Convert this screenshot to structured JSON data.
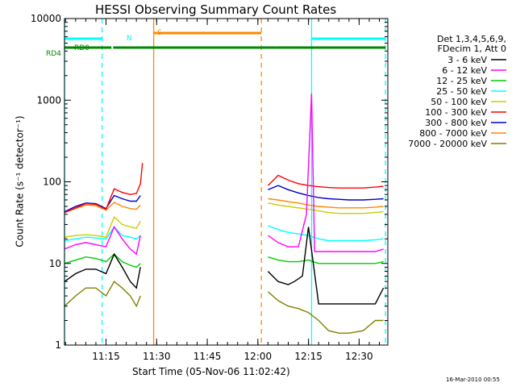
{
  "chart_data": {
    "type": "line",
    "title": "HESSI Observing Summary Count Rates",
    "xlabel": "Start Time (05-Nov-06 11:02:42)",
    "ylabel": "Count Rate (s⁻¹ detector⁻¹)",
    "yscale": "log",
    "ylim": [
      1,
      10000
    ],
    "xlim": [
      11.0449,
      12.6417
    ],
    "x_ticks": [
      11.25,
      11.5,
      11.75,
      12.0,
      12.25,
      12.5
    ],
    "x_tick_labels": [
      "11:15",
      "11:30",
      "11:45",
      "12:00",
      "12:15",
      "12:30"
    ],
    "y_ticks": [
      1,
      10,
      100,
      1000,
      10000
    ],
    "y_tick_labels": [
      "1",
      "10",
      "100",
      "1000",
      "10000"
    ],
    "legend_header": [
      "Det 1,3,4,5,6,9,",
      "FDecim 1, Att 0"
    ],
    "legend_placement": "right",
    "footer": "16-Mar-2010 00:55",
    "series": [
      {
        "name": "3 - 6 keV",
        "color": "#000000",
        "x": [
          11.045,
          11.1,
          11.15,
          11.2,
          11.25,
          11.29,
          11.33,
          11.37,
          11.4,
          11.42,
          12.05,
          12.1,
          12.15,
          12.18,
          12.22,
          12.25,
          12.3,
          12.35,
          12.4,
          12.45,
          12.52,
          12.58,
          12.62
        ],
        "y": [
          6,
          7.5,
          8.5,
          8.5,
          7.5,
          13,
          9,
          6,
          5,
          9,
          8,
          6,
          5.5,
          6,
          7,
          28,
          3.2,
          3.2,
          3.2,
          3.2,
          3.2,
          3.2,
          5
        ]
      },
      {
        "name": "6 - 12 keV",
        "color": "#ff00ff",
        "x": [
          11.045,
          11.1,
          11.15,
          11.2,
          11.25,
          11.29,
          11.33,
          11.37,
          11.4,
          11.42,
          12.05,
          12.1,
          12.15,
          12.2,
          12.24,
          12.265,
          12.28,
          12.35,
          12.4,
          12.45,
          12.52,
          12.58,
          12.62
        ],
        "y": [
          15,
          17,
          18,
          17,
          16,
          28,
          20,
          15,
          13,
          22,
          22,
          18,
          16,
          16,
          40,
          1200,
          14,
          14,
          14,
          14,
          14,
          14,
          15
        ]
      },
      {
        "name": "12 - 25 keV",
        "color": "#00cc00",
        "x": [
          11.045,
          11.1,
          11.15,
          11.2,
          11.25,
          11.29,
          11.33,
          11.37,
          11.4,
          11.42,
          12.05,
          12.1,
          12.15,
          12.2,
          12.25,
          12.3,
          12.35,
          12.4,
          12.45,
          12.52,
          12.58,
          12.62
        ],
        "y": [
          10,
          11,
          12,
          11.5,
          10.5,
          13,
          10.5,
          9.5,
          9,
          10,
          12,
          11,
          10.5,
          10.5,
          11,
          10,
          10,
          10,
          10,
          10,
          10,
          10.5
        ]
      },
      {
        "name": "25 - 50 keV",
        "color": "#00ffff",
        "x": [
          11.045,
          11.1,
          11.15,
          11.2,
          11.25,
          11.29,
          11.33,
          11.37,
          11.4,
          11.42,
          12.05,
          12.1,
          12.15,
          12.2,
          12.25,
          12.3,
          12.35,
          12.4,
          12.45,
          12.52,
          12.58,
          12.62
        ],
        "y": [
          19,
          20,
          21,
          20.5,
          20,
          28,
          22,
          21,
          20,
          22,
          29,
          26,
          24,
          23,
          22,
          20,
          19,
          19,
          19,
          19,
          19.5,
          20
        ]
      },
      {
        "name": "50 - 100 keV",
        "color": "#cccc00",
        "x": [
          11.045,
          11.1,
          11.15,
          11.2,
          11.25,
          11.29,
          11.33,
          11.37,
          11.4,
          11.42,
          12.05,
          12.1,
          12.15,
          12.2,
          12.25,
          12.3,
          12.35,
          12.4,
          12.45,
          12.52,
          12.58,
          12.62
        ],
        "y": [
          21,
          22,
          22.5,
          22,
          21,
          37,
          30,
          28,
          27,
          33,
          55,
          52,
          50,
          48,
          46,
          44,
          42,
          41,
          41,
          41,
          42,
          43
        ]
      },
      {
        "name": "100 - 300 keV",
        "color": "#ff0000",
        "x": [
          11.045,
          11.1,
          11.15,
          11.2,
          11.25,
          11.29,
          11.33,
          11.37,
          11.4,
          11.42,
          11.43,
          12.05,
          12.1,
          12.15,
          12.2,
          12.25,
          12.3,
          12.35,
          12.4,
          12.45,
          12.52,
          12.58,
          12.62
        ],
        "y": [
          42,
          48,
          54,
          53,
          46,
          82,
          74,
          70,
          72,
          95,
          170,
          90,
          120,
          105,
          95,
          90,
          87,
          85,
          84,
          84,
          84,
          86,
          88
        ]
      },
      {
        "name": "300 - 800 keV",
        "color": "#0000cc",
        "x": [
          11.045,
          11.1,
          11.15,
          11.2,
          11.25,
          11.29,
          11.33,
          11.37,
          11.4,
          11.42,
          12.05,
          12.1,
          12.15,
          12.2,
          12.25,
          12.3,
          12.35,
          12.4,
          12.45,
          12.52,
          12.58,
          12.62
        ],
        "y": [
          43,
          50,
          55,
          54,
          47,
          68,
          62,
          58,
          58,
          68,
          80,
          90,
          80,
          73,
          68,
          64,
          62,
          61,
          60,
          60,
          61,
          62
        ]
      },
      {
        "name": "800 - 7000 keV",
        "color": "#ff8800",
        "x": [
          11.045,
          11.1,
          11.15,
          11.2,
          11.25,
          11.29,
          11.33,
          11.37,
          11.4,
          11.42,
          12.05,
          12.1,
          12.15,
          12.2,
          12.25,
          12.3,
          12.35,
          12.4,
          12.45,
          12.52,
          12.58,
          12.62
        ],
        "y": [
          42,
          47,
          52,
          51,
          45,
          56,
          50,
          47,
          46,
          52,
          62,
          60,
          57,
          55,
          52,
          50,
          49,
          48,
          48,
          48,
          49,
          50
        ]
      },
      {
        "name": "7000 - 20000 keV",
        "color": "#808000",
        "x": [
          11.045,
          11.1,
          11.15,
          11.2,
          11.25,
          11.29,
          11.33,
          11.37,
          11.4,
          11.42,
          12.05,
          12.1,
          12.15,
          12.2,
          12.25,
          12.3,
          12.35,
          12.4,
          12.45,
          12.52,
          12.58,
          12.62
        ],
        "y": [
          3,
          4,
          5,
          5,
          4,
          6,
          5,
          4,
          3,
          4,
          4.5,
          3.5,
          3,
          2.8,
          2.5,
          2,
          1.5,
          1.4,
          1.4,
          1.5,
          2,
          2
        ]
      }
    ],
    "state_bars": [
      {
        "name": "RD4",
        "color": "#008800",
        "segments": [
          [
            11.0449,
            11.2767
          ],
          [
            11.2853,
            11.4853
          ],
          [
            11.4853,
            12.0172
          ],
          [
            12.0172,
            12.0856
          ],
          [
            12.0856,
            12.63
          ]
        ]
      },
      {
        "name": "RD0",
        "color": "#008800",
        "segments": []
      },
      {
        "name": "S",
        "color": "#ff8800",
        "segments": [
          [
            11.4853,
            12.0172
          ]
        ]
      },
      {
        "name": "N",
        "color": "#00ffff",
        "segments": [
          [
            11.0449,
            11.2304
          ],
          [
            12.2652,
            12.63
          ]
        ]
      }
    ],
    "night_markers": {
      "color": "#00ffff",
      "solid": [
        11.0449,
        12.2652
      ],
      "dashed": [
        11.2304,
        12.63
      ]
    },
    "saa_markers": {
      "color": "#ff8800",
      "solid": [
        11.4853
      ],
      "dashed": [
        12.0172
      ]
    }
  }
}
